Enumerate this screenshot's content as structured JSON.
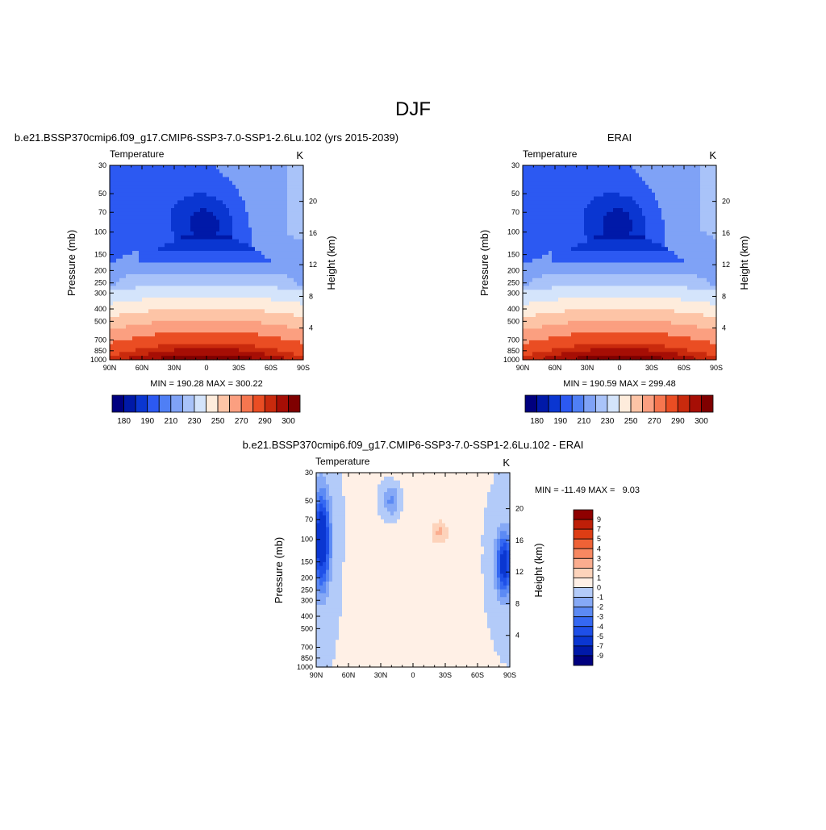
{
  "page_title": "DJF",
  "colors": {
    "abs_palette": [
      "#00007f",
      "#0019a8",
      "#0a36d1",
      "#2c59f2",
      "#4f7ff5",
      "#7fa2f6",
      "#a9c3f9",
      "#d4e4fb",
      "#feecdc",
      "#fdc4a6",
      "#fb9f80",
      "#f6764f",
      "#ea4d23",
      "#c92a0d",
      "#a60e05",
      "#7f0000"
    ],
    "diff_palette": [
      "#00007f",
      "#0019a8",
      "#0a36d1",
      "#1e4fe8",
      "#3568f2",
      "#5c8af4",
      "#86a9f6",
      "#b3cbf9",
      "#d9e8fc",
      "#fff0e6",
      "#fdd3bb",
      "#fbad8f",
      "#f78861",
      "#ef6236",
      "#de3d14",
      "#bf1f08",
      "#8f0000"
    ]
  },
  "chart_data": [
    {
      "type": "heatmap",
      "panel_title": "b.e21.BSSP370cmip6.f09_g17.CMIP6-SSP3-7.0-SSP1-2.6Lu.102 (yrs 2015-2039)",
      "left_string": "Temperature",
      "right_string": "K",
      "ylabel": "Pressure (mb)",
      "y2label": "Height (km)",
      "x_ticks": [
        "90N",
        "60N",
        "30N",
        "0",
        "30S",
        "60S",
        "90S"
      ],
      "y_ticks": [
        "30",
        "50",
        "70",
        "100",
        "150",
        "200",
        "250",
        "300",
        "400",
        "500",
        "700",
        "850",
        "1000"
      ],
      "y2_ticks": [
        "20",
        "16",
        "12",
        "8",
        "4"
      ],
      "ylim": [
        1000,
        30
      ],
      "y_scale": "log",
      "min_label": "MIN = 190.28",
      "max_label": "MAX = 300.22",
      "min": 190.28,
      "max": 300.22,
      "colorbar_labels": [
        "180",
        "190",
        "210",
        "230",
        "250",
        "270",
        "290",
        "300"
      ],
      "colorbar_orientation": "horizontal"
    },
    {
      "type": "heatmap",
      "panel_title": "ERAI",
      "left_string": "Temperature",
      "right_string": "K",
      "ylabel": "Pressure (mb)",
      "y2label": "Height (km)",
      "x_ticks": [
        "90N",
        "60N",
        "30N",
        "0",
        "30S",
        "60S",
        "90S"
      ],
      "y_ticks": [
        "30",
        "50",
        "70",
        "100",
        "150",
        "200",
        "250",
        "300",
        "400",
        "500",
        "700",
        "850",
        "1000"
      ],
      "y2_ticks": [
        "20",
        "16",
        "12",
        "8",
        "4"
      ],
      "ylim": [
        1000,
        30
      ],
      "y_scale": "log",
      "min_label": "MIN = 190.59",
      "max_label": "MAX = 299.48",
      "min": 190.59,
      "max": 299.48,
      "colorbar_labels": [
        "180",
        "190",
        "210",
        "230",
        "250",
        "270",
        "290",
        "300"
      ],
      "colorbar_orientation": "horizontal"
    },
    {
      "type": "heatmap",
      "panel_title": "b.e21.BSSP370cmip6.f09_g17.CMIP6-SSP3-7.0-SSP1-2.6Lu.102 - ERAI",
      "left_string": "Temperature",
      "right_string": "K",
      "ylabel": "Pressure (mb)",
      "y2label": "Height (km)",
      "x_ticks": [
        "90N",
        "60N",
        "30N",
        "0",
        "30S",
        "60S",
        "90S"
      ],
      "y_ticks": [
        "30",
        "50",
        "70",
        "100",
        "150",
        "200",
        "250",
        "300",
        "400",
        "500",
        "700",
        "850",
        "1000"
      ],
      "y2_ticks": [
        "20",
        "16",
        "12",
        "8",
        "4"
      ],
      "ylim": [
        1000,
        30
      ],
      "y_scale": "log",
      "min_label": "MIN = -11.49",
      "max_label": "MAX =   9.03",
      "min": -11.49,
      "max": 9.03,
      "colorbar_labels": [
        "9",
        "7",
        "5",
        "4",
        "3",
        "2",
        "1",
        "0",
        "-1",
        "-2",
        "-3",
        "-4",
        "-5",
        "-7",
        "-9"
      ],
      "colorbar_orientation": "vertical"
    }
  ]
}
